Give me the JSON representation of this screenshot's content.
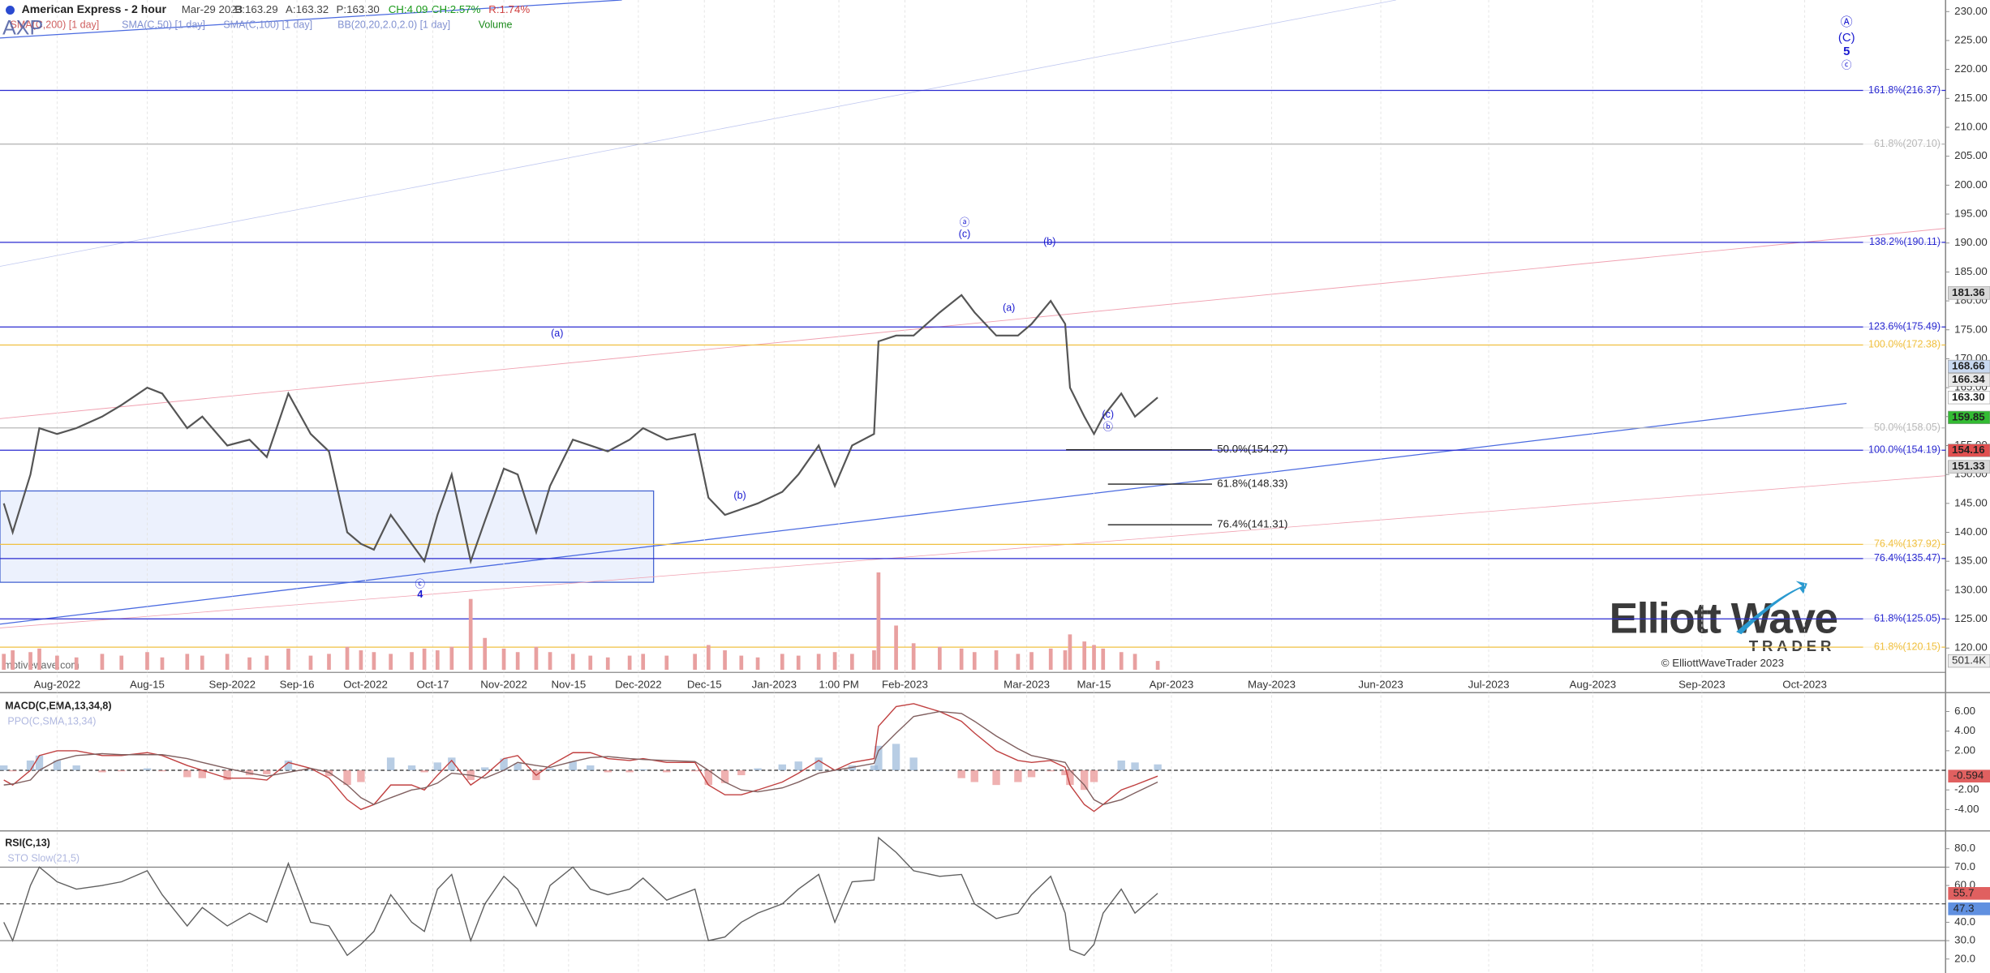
{
  "header": {
    "title": "American Express - 2 hour",
    "date": "Mar-29 2023",
    "bid": "B:163.29",
    "ask": "A:163.32",
    "price": "P:163.30",
    "change": "CH:4.09",
    "change_pct": "CH:2.57%",
    "range": "R:1.74%",
    "symbol": "AXP",
    "indicators": [
      "SMA(C,200) [1 day]",
      "SMA(C,50) [1 day]",
      "SMA(C,100) [1 day]",
      "BB(20,20,2.0,2.0) [1 day]",
      "Volume"
    ]
  },
  "watermark": "motivewave.com",
  "logo": {
    "name": "Elliott Wave",
    "sub": "TRADER",
    "copyright": "© ElliottWaveTrader 2023"
  },
  "chart_data": [
    {
      "type": "line",
      "color": "#555555",
      "x": [
        "2022-07-20",
        "2022-07-22",
        "2022-07-26",
        "2022-07-28",
        "2022-08-01",
        "2022-08-04",
        "2022-08-08",
        "2022-08-11",
        "2022-08-15",
        "2022-08-18",
        "2022-08-23",
        "2022-08-26",
        "2022-08-31",
        "2022-09-05",
        "2022-09-09",
        "2022-09-14",
        "2022-09-19",
        "2022-09-23",
        "2022-09-27",
        "2022-09-30",
        "2022-10-03",
        "2022-10-07",
        "2022-10-12",
        "2022-10-15",
        "2022-10-18",
        "2022-10-21",
        "2022-10-25",
        "2022-10-28",
        "2022-11-01",
        "2022-11-04",
        "2022-11-08",
        "2022-11-11",
        "2022-11-16",
        "2022-11-20",
        "2022-11-24",
        "2022-11-29",
        "2022-12-02",
        "2022-12-07",
        "2022-12-13",
        "2022-12-16",
        "2022-12-20",
        "2022-12-24",
        "2022-12-28",
        "2023-01-03",
        "2023-01-07",
        "2023-01-12",
        "2023-01-16",
        "2023-01-20",
        "2023-01-25",
        "2023-01-26",
        "2023-01-30",
        "2023-02-03",
        "2023-02-09",
        "2023-02-14",
        "2023-02-17",
        "2023-02-22",
        "2023-02-27",
        "2023-03-02",
        "2023-03-06",
        "2023-03-09",
        "2023-03-10",
        "2023-03-13",
        "2023-03-15",
        "2023-03-17",
        "2023-03-21",
        "2023-03-24",
        "2023-03-29"
      ],
      "values": [
        145,
        140,
        150,
        158,
        157,
        158,
        160,
        162,
        165,
        164,
        158,
        160,
        155,
        156,
        153,
        164,
        157,
        154,
        140,
        138,
        137,
        143,
        138,
        135,
        143,
        150,
        135,
        142,
        151,
        150,
        140,
        148,
        156,
        155,
        154,
        156,
        158,
        156,
        157,
        146,
        143,
        144,
        145,
        147,
        150,
        155,
        148,
        155,
        157,
        173,
        174,
        174,
        178,
        181,
        178,
        174,
        174,
        176,
        180,
        176,
        165,
        160,
        157,
        160,
        164,
        160,
        163.3
      ],
      "volume": {
        "color": "#e8a0a0",
        "values": [
          900000,
          1100000,
          1000000,
          1200000,
          800000,
          700000,
          900000,
          800000,
          1000000,
          700000,
          900000,
          800000,
          900000,
          700000,
          800000,
          1200000,
          800000,
          900000,
          1300000,
          1100000,
          1000000,
          900000,
          1000000,
          1200000,
          1100000,
          1300000,
          4000000,
          1800000,
          1200000,
          1000000,
          1300000,
          1000000,
          900000,
          800000,
          700000,
          800000,
          900000,
          800000,
          900000,
          1400000,
          1100000,
          800000,
          700000,
          900000,
          800000,
          900000,
          1000000,
          900000,
          1100000,
          5500000,
          2500000,
          1500000,
          1300000,
          1200000,
          1000000,
          1100000,
          900000,
          1000000,
          1200000,
          1100000,
          2000000,
          1600000,
          1400000,
          1200000,
          1000000,
          900000,
          501400
        ]
      },
      "volume_tag": {
        "value": 501400,
        "label": "501.4K"
      },
      "ylim": [
        115.8,
        232
      ],
      "yticks": [
        {
          "value": 120,
          "label": "120.00"
        },
        {
          "value": 125,
          "label": "125.00"
        },
        {
          "value": 130,
          "label": "130.00"
        },
        {
          "value": 135,
          "label": "135.00"
        },
        {
          "value": 140,
          "label": "140.00"
        },
        {
          "value": 145,
          "label": "145.00"
        },
        {
          "value": 150,
          "label": "150.00"
        },
        {
          "value": 155,
          "label": "155.00"
        },
        {
          "value": 160,
          "label": "160.00"
        },
        {
          "value": 165,
          "label": "165.00"
        },
        {
          "value": 170,
          "label": "170.00"
        },
        {
          "value": 175,
          "label": "175.00"
        },
        {
          "value": 180,
          "label": "180.00"
        },
        {
          "value": 185,
          "label": "185.00"
        },
        {
          "value": 190,
          "label": "190.00"
        },
        {
          "value": 195,
          "label": "195.00"
        },
        {
          "value": 200,
          "label": "200.00"
        },
        {
          "value": 205,
          "label": "205.00"
        },
        {
          "value": 210,
          "label": "210.00"
        },
        {
          "value": 215,
          "label": "215.00"
        },
        {
          "value": 220,
          "label": "220.00"
        },
        {
          "value": 225,
          "label": "225.00"
        },
        {
          "value": 230,
          "label": "230.00"
        }
      ],
      "xticks": [
        {
          "value": "2022-08",
          "label": "Aug-2022"
        },
        {
          "value": "2022-08-15",
          "label": "Aug-15"
        },
        {
          "value": "2022-09",
          "label": "Sep-2022"
        },
        {
          "value": "2022-09-16",
          "label": "Sep-16"
        },
        {
          "value": "2022-10",
          "label": "Oct-2022"
        },
        {
          "value": "2022-10-17",
          "label": "Oct-17"
        },
        {
          "value": "2022-11",
          "label": "Nov-2022"
        },
        {
          "value": "2022-11-15",
          "label": "Nov-15"
        },
        {
          "value": "2022-12",
          "label": "Dec-2022"
        },
        {
          "value": "2022-12-15",
          "label": "Dec-15"
        },
        {
          "value": "2023-01",
          "label": "Jan-2023"
        },
        {
          "value": "2023-01-17",
          "label": "1:00 PM"
        },
        {
          "value": "2023-02",
          "label": "Feb-2023"
        },
        {
          "value": "2023-03",
          "label": "Mar-2023"
        },
        {
          "value": "2023-03-15",
          "label": "Mar-15"
        },
        {
          "value": "2023-04",
          "label": "Apr-2023"
        },
        {
          "value": "2023-05",
          "label": "May-2023"
        },
        {
          "value": "2023-06",
          "label": "Jun-2023"
        },
        {
          "value": "2023-07",
          "label": "Jul-2023"
        },
        {
          "value": "2023-08",
          "label": "Aug-2023"
        },
        {
          "value": "2023-09",
          "label": "Sep-2023"
        },
        {
          "value": "2023-10",
          "label": "Oct-2023"
        }
      ],
      "levels": [
        {
          "label": "161.8%(216.37)",
          "value": 216.37,
          "color": "#2a2ad0"
        },
        {
          "label": "61.8%(207.10)",
          "value": 207.1,
          "color": "#b8b8b8"
        },
        {
          "label": "138.2%(190.11)",
          "value": 190.11,
          "color": "#2a2ad0"
        },
        {
          "label": "123.6%(175.49)",
          "value": 175.49,
          "color": "#2a2ad0"
        },
        {
          "label": "100.0%(172.38)",
          "value": 172.38,
          "color": "#f0c040"
        },
        {
          "label": "50.0%(158.05)",
          "value": 158.05,
          "color": "#b8b8b8"
        },
        {
          "label": "100.0%(154.19)",
          "value": 154.19,
          "color": "#2a2ad0"
        },
        {
          "label": "76.4%(137.92)",
          "value": 137.92,
          "color": "#f0c040"
        },
        {
          "label": "76.4%(135.47)",
          "value": 135.47,
          "color": "#2a2ad0"
        },
        {
          "label": "61.8%(125.05)",
          "value": 125.05,
          "color": "#2a2ad0"
        },
        {
          "label": "61.8%(120.15)",
          "value": 120.15,
          "color": "#f0c040"
        }
      ],
      "targets": [
        {
          "label": "50.0%(154.27)",
          "value": 154.27
        },
        {
          "label": "61.8%(148.33)",
          "value": 148.33
        },
        {
          "label": "76.4%(141.31)",
          "value": 141.31
        }
      ],
      "waves": [
        "ⓐ",
        "(c)",
        "(b)",
        "(a)",
        "(c)",
        "ⓑ",
        "(a)",
        "(b)",
        "ⓒ",
        "4",
        "Ⓐ",
        "(C)",
        "5",
        "ⓒ"
      ],
      "price_tags": [
        {
          "value": 181.36,
          "label": "181.36",
          "color": "#d8d8d8"
        },
        {
          "value": 168.66,
          "label": "168.66",
          "color": "#c8d8f0"
        },
        {
          "value": 166.34,
          "label": "166.34",
          "color": "#e8e8e8"
        },
        {
          "value": 163.3,
          "label": "163.30",
          "color": "#ffffff"
        },
        {
          "value": 159.85,
          "label": "159.85",
          "color": "#33bb33"
        },
        {
          "value": 154.16,
          "label": "154.16",
          "color": "#e05050"
        },
        {
          "value": 151.33,
          "label": "151.33",
          "color": "#d8d8d8"
        }
      ]
    },
    {
      "type": "line",
      "title": "MACD(C,EMA,13,34,8)",
      "subtitle": "PPO(C,SMA,13,34)",
      "series": [
        {
          "color": "#c04040",
          "values": [
            -1,
            -1.5,
            0,
            1.5,
            2,
            2,
            1.5,
            1.5,
            1.8,
            1.5,
            0.5,
            0,
            -0.8,
            -0.8,
            -1,
            0.8,
            0.2,
            -0.8,
            -3,
            -4,
            -3.5,
            -1.5,
            -1.5,
            -2,
            -0.5,
            1,
            -1.5,
            -0.5,
            1.2,
            1.5,
            -0.5,
            0.5,
            1.8,
            1.8,
            1.2,
            1,
            1.2,
            0.8,
            0.8,
            -1.5,
            -2.5,
            -2.5,
            -2,
            -1.2,
            -0.3,
            1,
            0,
            0.8,
            1.2,
            4.5,
            6.5,
            6.8,
            6,
            5,
            3.8,
            2,
            1,
            0.8,
            1,
            0.3,
            -1.5,
            -3.5,
            -4.2,
            -3.5,
            -2,
            -1.5,
            -0.594
          ]
        },
        {
          "color": "#806060",
          "values": [
            -1.5,
            -1.4,
            -1,
            0,
            1,
            1.5,
            1.7,
            1.6,
            1.6,
            1.6,
            1.2,
            0.8,
            0.2,
            -0.3,
            -0.6,
            -0.2,
            0.2,
            -0.2,
            -1.5,
            -2.8,
            -3.5,
            -2.8,
            -2,
            -1.8,
            -1.3,
            -0.3,
            -0.5,
            -0.8,
            0,
            0.8,
            0.5,
            0.3,
            0.9,
            1.3,
            1.4,
            1.2,
            1.1,
            1,
            0.9,
            0,
            -1.2,
            -2,
            -2.2,
            -1.8,
            -1.2,
            -0.3,
            0,
            0.3,
            0.7,
            2,
            3.8,
            5.5,
            6,
            5.8,
            5,
            3.5,
            2.2,
            1.5,
            1.1,
            0.8,
            0,
            -1.5,
            -3,
            -3.5,
            -3,
            -2.3,
            -1.2
          ]
        }
      ],
      "ylim": [
        -5.8,
        7.8
      ],
      "yticks": [
        {
          "value": 6,
          "label": "6.00"
        },
        {
          "value": 4,
          "label": "4.00"
        },
        {
          "value": 2,
          "label": "2.00"
        },
        {
          "value": -2,
          "label": "-2.00"
        },
        {
          "value": -4,
          "label": "-4.00"
        }
      ],
      "tags": [
        {
          "value": -0.594,
          "color": "#e06060"
        }
      ]
    },
    {
      "type": "line",
      "title": "RSI(C,13)",
      "subtitle": "STO Slow(21,5)",
      "series": [
        {
          "color": "#606060",
          "values": [
            40,
            30,
            60,
            70,
            62,
            58,
            60,
            62,
            68,
            55,
            38,
            48,
            38,
            45,
            40,
            72,
            40,
            38,
            22,
            28,
            35,
            55,
            40,
            35,
            58,
            66,
            30,
            50,
            65,
            58,
            38,
            60,
            70,
            58,
            55,
            58,
            64,
            52,
            58,
            30,
            32,
            40,
            45,
            50,
            58,
            66,
            40,
            62,
            63,
            86,
            78,
            68,
            65,
            66,
            50,
            42,
            45,
            55,
            65,
            45,
            25,
            22,
            28,
            45,
            58,
            45,
            55.7
          ]
        }
      ],
      "ylim": [
        12.4,
        88.3
      ],
      "yticks": [
        {
          "value": 80,
          "label": "80.0"
        },
        {
          "value": 70,
          "label": "70.0"
        },
        {
          "value": 60,
          "label": "60.0"
        },
        {
          "value": 40,
          "label": "40.0"
        },
        {
          "value": 30,
          "label": "30.0"
        },
        {
          "value": 20,
          "label": "20.0"
        }
      ],
      "bands": [
        70,
        30
      ],
      "midline": 50,
      "tags": [
        {
          "value": 55.7,
          "color": "#e06060"
        },
        {
          "value": 47.3,
          "color": "#6090e0"
        }
      ]
    }
  ]
}
